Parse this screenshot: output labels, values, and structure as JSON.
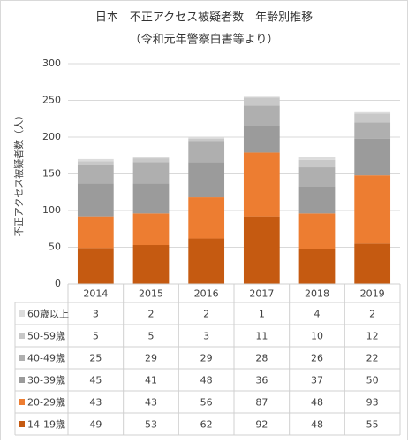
{
  "chart_data": {
    "type": "bar",
    "stacked": true,
    "title": "日本　不正アクセス被疑者数　年齢別推移",
    "subtitle": "（令和元年警察白書等より）",
    "y_label": "不正アクセス被疑者数（人）",
    "categories": [
      "2014",
      "2015",
      "2016",
      "2017",
      "2018",
      "2019"
    ],
    "series": [
      {
        "name": "14-19歳",
        "color": "#c55a11",
        "values": [
          49,
          53,
          62,
          92,
          48,
          55
        ]
      },
      {
        "name": "20-29歳",
        "color": "#ed7d31",
        "values": [
          43,
          43,
          56,
          87,
          48,
          93
        ]
      },
      {
        "name": "30-39歳",
        "color": "#9b9b9b",
        "values": [
          45,
          41,
          48,
          36,
          37,
          50
        ]
      },
      {
        "name": "40-49歳",
        "color": "#afafaf",
        "values": [
          25,
          29,
          29,
          28,
          26,
          22
        ]
      },
      {
        "name": "50-59歳",
        "color": "#c8c8c8",
        "values": [
          5,
          5,
          3,
          11,
          10,
          12
        ]
      },
      {
        "name": "60歳以上",
        "color": "#dcdcdc",
        "values": [
          3,
          2,
          2,
          1,
          4,
          2
        ]
      }
    ],
    "ylim": [
      0,
      300
    ],
    "yticks": [
      0,
      50,
      100,
      150,
      200,
      250,
      300
    ],
    "grid": true
  }
}
